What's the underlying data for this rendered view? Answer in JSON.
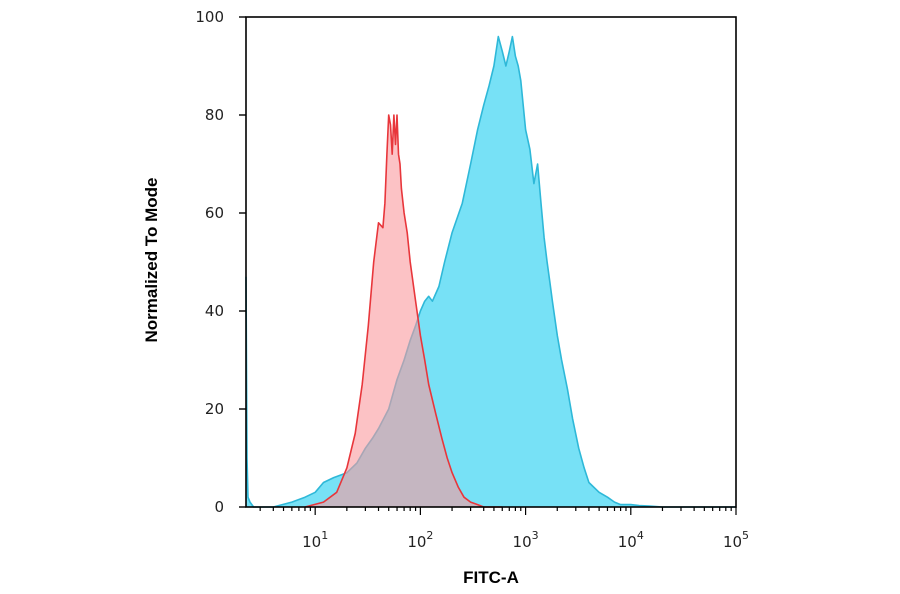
{
  "chart_data": {
    "type": "area",
    "title": "",
    "xlabel": "FITC-A",
    "ylabel": "Normalized To Mode",
    "x_scale": "log",
    "xlim": [
      2.2,
      100000
    ],
    "ylim": [
      0,
      100
    ],
    "x_ticks": [
      {
        "value": 10,
        "base": "10",
        "exp": "1"
      },
      {
        "value": 100,
        "base": "10",
        "exp": "2"
      },
      {
        "value": 1000,
        "base": "10",
        "exp": "3"
      },
      {
        "value": 10000,
        "base": "10",
        "exp": "4"
      },
      {
        "value": 100000,
        "base": "10",
        "exp": "5"
      }
    ],
    "y_ticks": [
      0,
      20,
      40,
      60,
      80,
      100
    ],
    "grid": false,
    "legend": "none",
    "series": [
      {
        "color": "#e8363b",
        "fill": "#fa9a9e",
        "x": [
          8,
          12,
          16,
          20,
          24,
          28,
          32,
          36,
          40,
          44,
          46,
          48,
          50,
          52,
          54,
          56,
          58,
          60,
          62,
          64,
          66,
          70,
          75,
          80,
          90,
          100,
          110,
          120,
          140,
          160,
          180,
          200,
          230,
          260,
          300,
          350,
          400,
          500,
          600
        ],
        "y": [
          0,
          1,
          3,
          8,
          15,
          25,
          37,
          50,
          58,
          57,
          62,
          72,
          80,
          78,
          72,
          80,
          74,
          80,
          72,
          70,
          65,
          60,
          56,
          50,
          42,
          35,
          30,
          25,
          19,
          14,
          10,
          7,
          4,
          2,
          1,
          0.5,
          0,
          0,
          0
        ]
      },
      {
        "color": "#2eb8d8",
        "fill": "#5fdcf5",
        "x": [
          2.2,
          2.25,
          2.3,
          2.4,
          2.6,
          3,
          4,
          6,
          8,
          10,
          12,
          15,
          20,
          25,
          30,
          35,
          40,
          50,
          60,
          70,
          80,
          90,
          100,
          110,
          120,
          130,
          150,
          170,
          200,
          250,
          300,
          350,
          400,
          450,
          500,
          550,
          600,
          650,
          700,
          750,
          800,
          850,
          900,
          950,
          1000,
          1100,
          1200,
          1300,
          1400,
          1500,
          1600,
          1700,
          1800,
          2000,
          2200,
          2500,
          2800,
          3200,
          3600,
          4000,
          5000,
          6000,
          7000,
          8000,
          10000,
          12000,
          15000,
          20000,
          30000,
          50000,
          100000
        ],
        "y": [
          47,
          10,
          2,
          1,
          0,
          0,
          0,
          1,
          2,
          3,
          5,
          6,
          7,
          9,
          12,
          14,
          16,
          20,
          26,
          30,
          34,
          37,
          40,
          42,
          43,
          42,
          45,
          50,
          56,
          62,
          70,
          77,
          82,
          86,
          90,
          96,
          93,
          90,
          93,
          96,
          92,
          90,
          87,
          82,
          77,
          73,
          66,
          70,
          62,
          55,
          50,
          46,
          42,
          35,
          30,
          24,
          18,
          12,
          8,
          5,
          3,
          2,
          1,
          0.5,
          0.5,
          0.3,
          0.2,
          0,
          0,
          0,
          0
        ]
      }
    ]
  }
}
